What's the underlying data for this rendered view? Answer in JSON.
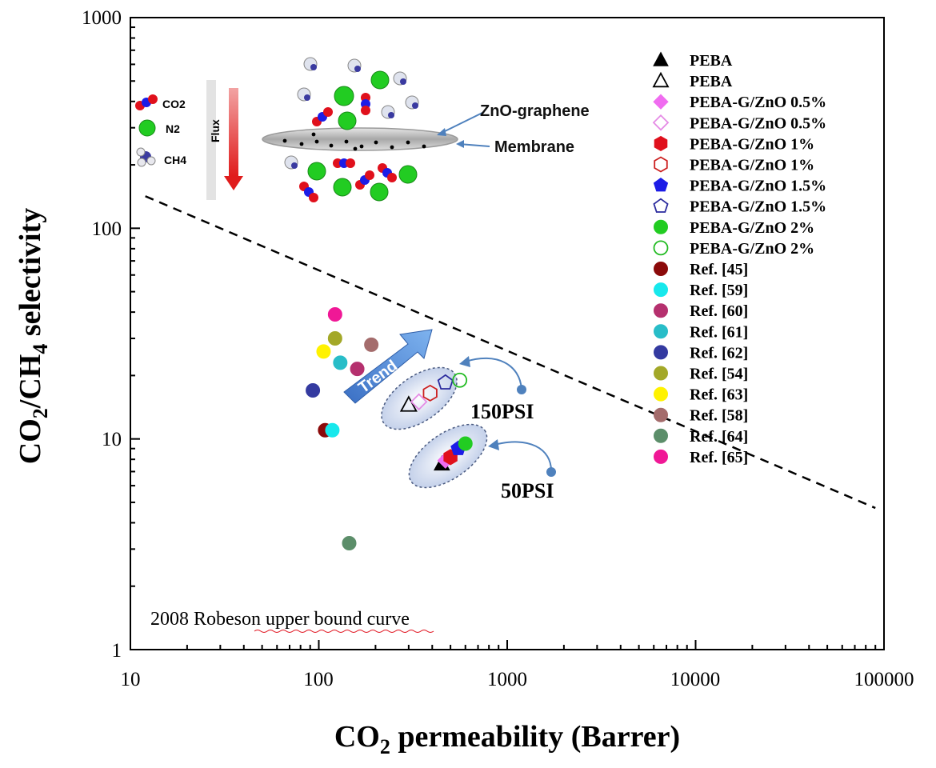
{
  "chart_data": {
    "type": "scatter",
    "x_scale": "log",
    "y_scale": "log",
    "xlim": [
      10,
      100000
    ],
    "ylim": [
      1,
      1000
    ],
    "x_ticks": [
      "10",
      "100",
      "1000",
      "10000",
      "100000"
    ],
    "y_ticks": [
      "1",
      "10",
      "100",
      "1000"
    ],
    "grid": false,
    "legend_position": "right",
    "series": [
      {
        "name": "PEBA",
        "marker": "triangle",
        "filled": true,
        "color": "#000000",
        "points": [
          [
            450,
            7.6
          ]
        ]
      },
      {
        "name": "PEBA",
        "marker": "triangle",
        "filled": false,
        "color": "#000000",
        "points": [
          [
            300,
            14.5
          ]
        ]
      },
      {
        "name": "PEBA-G/ZnO 0.5%",
        "marker": "diamond",
        "filled": true,
        "color": "#f06cf0",
        "points": [
          [
            470,
            7.9
          ]
        ]
      },
      {
        "name": "PEBA-G/ZnO 0.5%",
        "marker": "diamond",
        "filled": false,
        "color": "#e58ce5",
        "points": [
          [
            340,
            15.0
          ]
        ]
      },
      {
        "name": "PEBA-G/ZnO 1%",
        "marker": "hexagon",
        "filled": true,
        "color": "#e0101c",
        "points": [
          [
            500,
            8.2
          ]
        ]
      },
      {
        "name": "PEBA-G/ZnO 1%",
        "marker": "hexagon",
        "filled": false,
        "color": "#cc2020",
        "points": [
          [
            390,
            16.5
          ]
        ]
      },
      {
        "name": "PEBA-G/ZnO 1.5%",
        "marker": "pentagon",
        "filled": true,
        "color": "#1c1ce6",
        "points": [
          [
            550,
            9.0
          ]
        ]
      },
      {
        "name": "PEBA-G/ZnO 1.5%",
        "marker": "pentagon",
        "filled": false,
        "color": "#2b2b9e",
        "points": [
          [
            470,
            18.5
          ]
        ]
      },
      {
        "name": "PEBA-G/ZnO 2%",
        "marker": "circle",
        "filled": true,
        "color": "#22cc22",
        "points": [
          [
            600,
            9.5
          ]
        ]
      },
      {
        "name": "PEBA-G/ZnO 2%",
        "marker": "circle",
        "filled": false,
        "color": "#22bb22",
        "points": [
          [
            560,
            19.0
          ]
        ]
      },
      {
        "name": "Ref. [45]",
        "marker": "circle",
        "filled": true,
        "color": "#8b0a0a",
        "points": [
          [
            108,
            11
          ]
        ]
      },
      {
        "name": "Ref. [59]",
        "marker": "circle",
        "filled": true,
        "color": "#17e8ec",
        "points": [
          [
            118,
            11
          ]
        ]
      },
      {
        "name": "Ref. [60]",
        "marker": "circle",
        "filled": true,
        "color": "#b5306e",
        "points": [
          [
            160,
            21.5
          ]
        ]
      },
      {
        "name": "Ref. [61]",
        "marker": "circle",
        "filled": true,
        "color": "#28bdc8",
        "points": [
          [
            130,
            23
          ]
        ]
      },
      {
        "name": "Ref. [62]",
        "marker": "circle",
        "filled": true,
        "color": "#343aa0",
        "points": [
          [
            93,
            17
          ]
        ]
      },
      {
        "name": "Ref. [54]",
        "marker": "circle",
        "filled": true,
        "color": "#a3a828",
        "points": [
          [
            122,
            30
          ]
        ]
      },
      {
        "name": "Ref. [63]",
        "marker": "circle",
        "filled": true,
        "color": "#fff200",
        "points": [
          [
            106,
            26
          ]
        ]
      },
      {
        "name": "Ref. [58]",
        "marker": "circle",
        "filled": true,
        "color": "#a46c6c",
        "points": [
          [
            190,
            28
          ]
        ]
      },
      {
        "name": "Ref. [64]",
        "marker": "circle",
        "filled": true,
        "color": "#5c8e6a",
        "points": [
          [
            145,
            3.2
          ]
        ]
      },
      {
        "name": "Ref. [65]",
        "marker": "circle",
        "filled": true,
        "color": "#f01896",
        "points": [
          [
            122,
            39
          ]
        ]
      }
    ],
    "robeson_line": {
      "x": [
        12,
        90000
      ],
      "y": [
        142,
        4.7
      ]
    },
    "annotations": {
      "trend": "Trend",
      "psi_high": "150PSI",
      "psi_low": "50PSI",
      "zno_graphene": "ZnO-graphene",
      "membrane": "Membrane",
      "flux": "Flux",
      "gas_co2": "CO2",
      "gas_n2": "N2",
      "gas_ch4": "CH4",
      "robeson_caption": "2008 Robeson upper bound curve"
    }
  }
}
